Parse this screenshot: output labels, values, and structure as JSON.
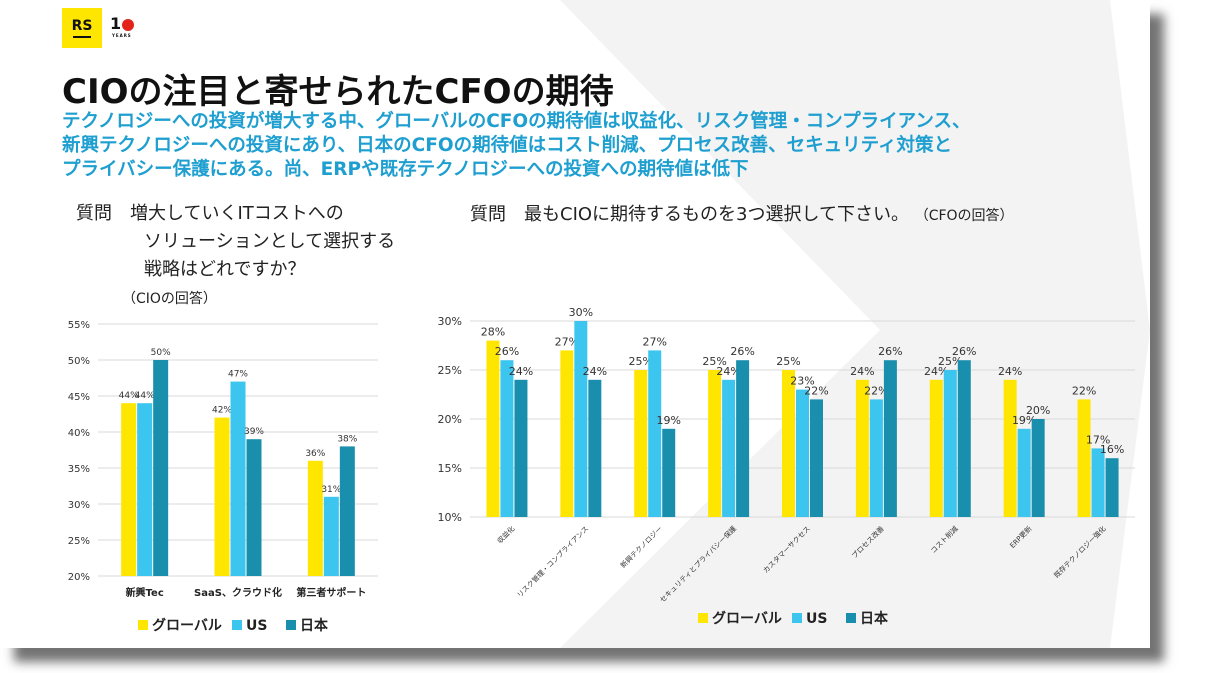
{
  "logo": {
    "rs": "RS",
    "ten": "1",
    "years": "YEARS"
  },
  "title": "CIOの注目と寄せられたCFOの期待",
  "subtitle": [
    "テクノロジーへの投資が増大する中、グローバルのCFOの期待値は収益化、リスク管理・コンプライアンス、",
    "新興テクノロジーへの投資にあり、日本のCFOの期待値はコスト削減、プロセス改善、セキュリティ対策と",
    "プライバシー保護にある。尚、ERPや既存テクノロジーへの投資への期待値は低下"
  ],
  "left_question": {
    "lines": [
      "質問　増大していくITコストへの",
      "ソリューションとして選択する",
      "戦略はどれですか？"
    ],
    "sub": "（CIOの回答）"
  },
  "right_question": {
    "main": "質問　最もCIOに期待するものを3つ選択して下さい。",
    "sub": "（CFOの回答）"
  },
  "colors": {
    "global": "#ffe600",
    "us": "#3cc6ef",
    "japan": "#1a8fad",
    "subtitle": "#1e9fd0"
  },
  "chart_data": [
    {
      "type": "bar",
      "categories": [
        "新興Tec",
        "SaaS、クラウド化",
        "第三者サポート"
      ],
      "series": [
        {
          "name": "グローバル",
          "values": [
            44,
            42,
            36
          ]
        },
        {
          "name": "US",
          "values": [
            44,
            47,
            31
          ]
        },
        {
          "name": "日本",
          "values": [
            50,
            39,
            38
          ]
        }
      ],
      "ylim": [
        20,
        55
      ],
      "yticks": [
        "20%",
        "25%",
        "30%",
        "35%",
        "40%",
        "45%",
        "50%",
        "55%"
      ],
      "labels": [
        [
          "44%",
          "42%",
          "36%"
        ],
        [
          "44%",
          "47%",
          "31%"
        ],
        [
          "50%",
          "39%",
          "38%"
        ]
      ],
      "grid": true,
      "legend": "bottom"
    },
    {
      "type": "bar",
      "categories": [
        "収益化",
        "リスク管理・コンプライアンス",
        "新興テクノロジー",
        "セキュリティとプライバシー保護",
        "カスタマーサクセス",
        "プロセス改善",
        "コスト削減",
        "ERP更新",
        "既存テクノロジー強化"
      ],
      "series": [
        {
          "name": "グローバル",
          "values": [
            28,
            27,
            25,
            25,
            25,
            24,
            24,
            24,
            22
          ]
        },
        {
          "name": "US",
          "values": [
            26,
            30,
            27,
            24,
            23,
            22,
            25,
            19,
            17
          ]
        },
        {
          "name": "日本",
          "values": [
            24,
            24,
            19,
            26,
            22,
            26,
            26,
            20,
            16
          ]
        }
      ],
      "ylim": [
        10,
        30
      ],
      "yticks": [
        "10%",
        "15%",
        "20%",
        "25%",
        "30%"
      ],
      "labels": [
        [
          "28%",
          "27%",
          "25%",
          "25%",
          "25%",
          "24%",
          "24%",
          "24%",
          "22%"
        ],
        [
          "26%",
          "30%",
          "27%",
          "24%",
          "23%",
          "22%",
          "25%",
          "19%",
          "17%"
        ],
        [
          "24%",
          "24%",
          "19%",
          "26%",
          "22%",
          "26%",
          "26%",
          "20%",
          "16%"
        ]
      ],
      "grid": true,
      "legend": "bottom"
    }
  ]
}
